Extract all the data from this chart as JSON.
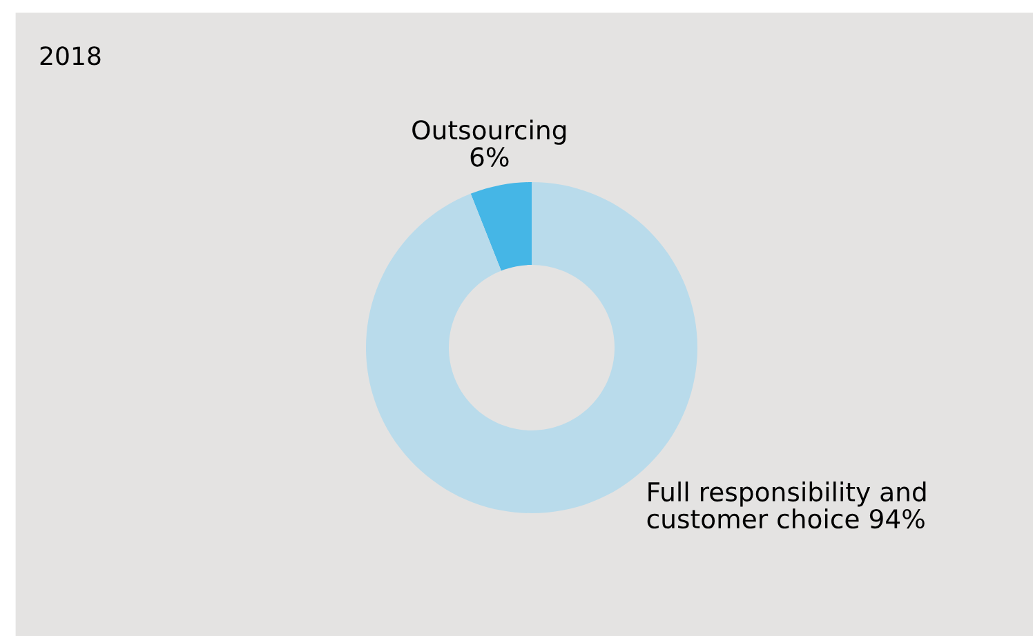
{
  "chart_data": {
    "type": "donut",
    "title": "2018",
    "categories": [
      "Outsourcing",
      "Full responsibility and\ncustomer choice"
    ],
    "values": [
      6,
      94
    ],
    "value_labels": [
      "6%",
      "94%"
    ],
    "colors": [
      "#45b6e6",
      "#b9dbeb"
    ]
  }
}
